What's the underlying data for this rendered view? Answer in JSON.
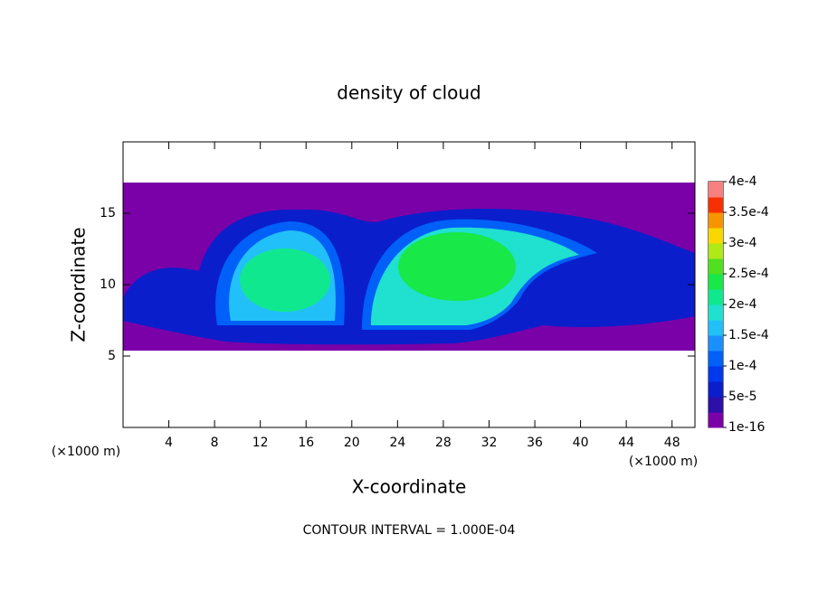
{
  "chart_data": {
    "type": "contour",
    "title": "density of cloud",
    "x_label": "X-coordinate",
    "y_label": "Z-coordinate",
    "x_unit_left": "(×1000 m)",
    "x_unit_right": "(×1000 m)",
    "footer": "CONTOUR INTERVAL = 1.000E-04",
    "xlim": [
      0,
      50
    ],
    "ylim": [
      0,
      20
    ],
    "xticks": [
      4,
      8,
      12,
      16,
      20,
      24,
      28,
      32,
      36,
      40,
      44,
      48
    ],
    "yticks": [
      5,
      10,
      15
    ],
    "clim": [
      1e-16,
      0.0004
    ],
    "cticks": [
      {
        "value": 1e-16,
        "label": "1e-16"
      },
      {
        "value": 5e-05,
        "label": "5e-5"
      },
      {
        "value": 0.0001,
        "label": "1e-4"
      },
      {
        "value": 0.00015,
        "label": "1.5e-4"
      },
      {
        "value": 0.0002,
        "label": "2e-4"
      },
      {
        "value": 0.00025,
        "label": "2.5e-4"
      },
      {
        "value": 0.0003,
        "label": "3e-4"
      },
      {
        "value": 0.00035,
        "label": "3.5e-4"
      },
      {
        "value": 0.0004,
        "label": "4e-4"
      }
    ],
    "colors": [
      "#7a00a8",
      "#2c10a8",
      "#0a1ecc",
      "#0038ec",
      "#0060f8",
      "#1a90ff",
      "#22c0f8",
      "#20e0d0",
      "#10e890",
      "#18e848",
      "#50e020",
      "#b0e818",
      "#f8d800",
      "#f89400",
      "#f83000",
      "#f88080"
    ]
  }
}
